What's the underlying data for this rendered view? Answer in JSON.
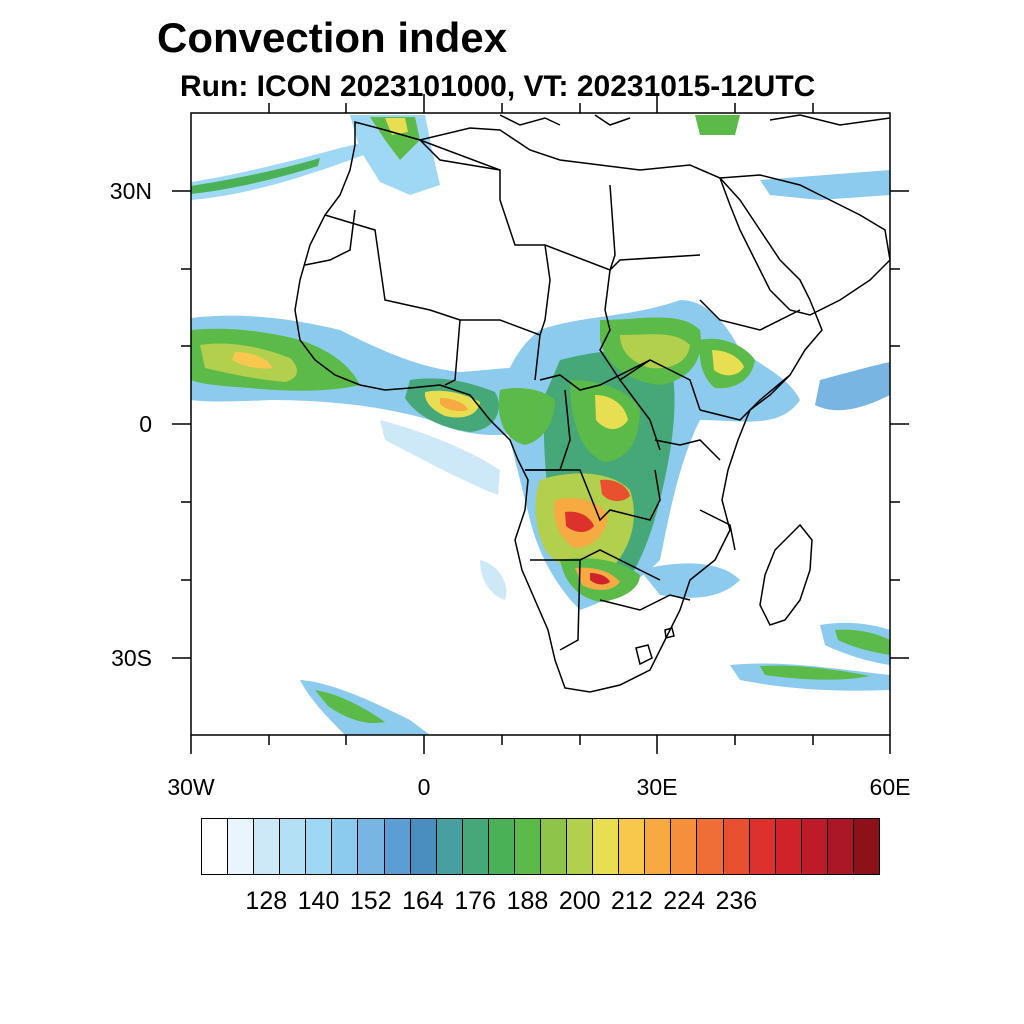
{
  "title": "Convection index",
  "subtitle": "Run: ICON 2023101000,  VT: 20231015-12UTC",
  "map": {
    "lat_labels": [
      "30N",
      "0",
      "30S"
    ],
    "lon_labels": [
      "30W",
      "0",
      "30E",
      "60E"
    ],
    "lat_range": [
      -40,
      40
    ],
    "lon_range": [
      -30,
      60
    ]
  },
  "colorbar": {
    "colors": [
      "#ffffff",
      "#e9f5fc",
      "#cde9f7",
      "#b4e0f6",
      "#9fd8f5",
      "#8ccbee",
      "#78b5e3",
      "#5c9dd3",
      "#4a8dbf",
      "#479f9f",
      "#46a778",
      "#4ab156",
      "#5bba48",
      "#8fc44a",
      "#b2cf4e",
      "#e8de52",
      "#f8c84d",
      "#f7aa42",
      "#f48f3b",
      "#ef6e35",
      "#e9502f",
      "#dd322c",
      "#cf232c",
      "#be1b2a",
      "#ab1726",
      "#8c1118"
    ],
    "labels": [
      "128",
      "140",
      "152",
      "164",
      "176",
      "188",
      "200",
      "212",
      "224",
      "236"
    ]
  }
}
